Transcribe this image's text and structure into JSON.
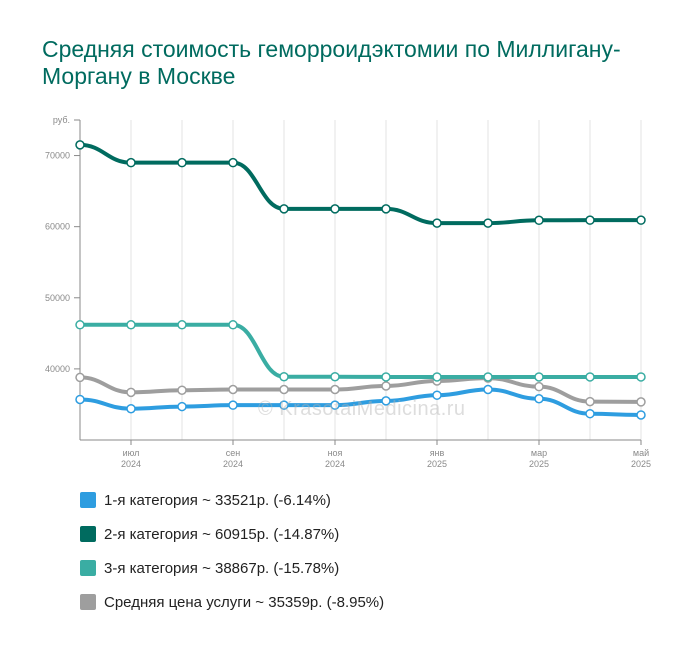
{
  "title": "Средняя стоимость геморроидэктомии по Миллигану-Моргану в Москве",
  "watermark": "© KrasotaiMedicina.ru",
  "chart_data": {
    "type": "line",
    "ylabel": "руб.",
    "ylim": [
      30000,
      75000
    ],
    "y_ticks": [
      40000,
      50000,
      60000,
      70000
    ],
    "x_ticks": [
      {
        "month": "июл",
        "year": "2024",
        "i": 1
      },
      {
        "month": "сен",
        "year": "2024",
        "i": 3
      },
      {
        "month": "ноя",
        "year": "2024",
        "i": 5
      },
      {
        "month": "янв",
        "year": "2025",
        "i": 7
      },
      {
        "month": "мар",
        "year": "2025",
        "i": 9
      },
      {
        "month": "май",
        "year": "2025",
        "i": 11
      }
    ],
    "x": [
      "2024-06",
      "2024-07",
      "2024-08",
      "2024-09",
      "2024-10",
      "2024-11",
      "2024-12",
      "2025-01",
      "2025-02",
      "2025-03",
      "2025-04",
      "2025-05"
    ],
    "series": [
      {
        "name": "1-я категория",
        "color": "#2e9de0",
        "values": [
          35700,
          34400,
          34700,
          34900,
          34900,
          34900,
          35500,
          36300,
          37100,
          35800,
          33700,
          33521
        ]
      },
      {
        "name": "2-я категория",
        "color": "#006b5f",
        "values": [
          71500,
          69000,
          69000,
          69000,
          62500,
          62500,
          62500,
          60500,
          60500,
          60900,
          60915,
          60915
        ]
      },
      {
        "name": "3-я категория",
        "color": "#3aada3",
        "values": [
          46200,
          46200,
          46200,
          46200,
          38900,
          38900,
          38867,
          38867,
          38867,
          38867,
          38867,
          38867
        ]
      },
      {
        "name": "Средняя цена услуги",
        "color": "#9e9e9e",
        "values": [
          38800,
          36700,
          37000,
          37100,
          37100,
          37100,
          37600,
          38300,
          38700,
          37500,
          35400,
          35359
        ]
      }
    ]
  },
  "legend": [
    {
      "label": "1-я категория ~ 33521р. (-6.14%)",
      "color": "#2e9de0"
    },
    {
      "label": "2-я категория ~ 60915р. (-14.87%)",
      "color": "#006b5f"
    },
    {
      "label": "3-я категория ~ 38867р. (-15.78%)",
      "color": "#3aada3"
    },
    {
      "label": "Средняя цена услуги ~ 35359р. (-8.95%)",
      "color": "#9e9e9e"
    }
  ]
}
